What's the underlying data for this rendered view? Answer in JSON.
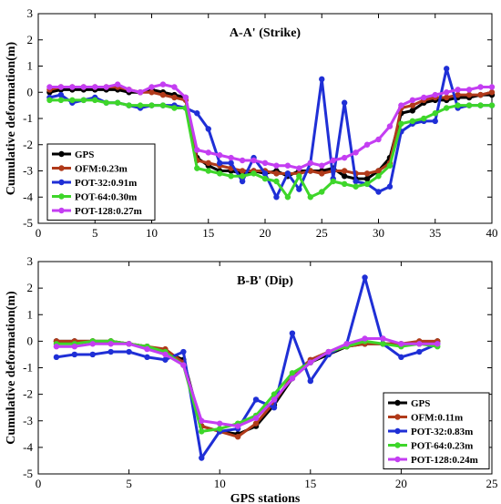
{
  "chart_data": [
    {
      "type": "line",
      "title": "A-A' (Strike)",
      "xlabel": "",
      "ylabel": "Cumulative deformation(m)",
      "xlim": [
        0,
        40
      ],
      "ylim": [
        -5,
        3
      ],
      "xticks": [
        0,
        5,
        10,
        15,
        20,
        25,
        30,
        35,
        40
      ],
      "yticks": [
        -5,
        -4,
        -3,
        -2,
        -1,
        0,
        1,
        2,
        3
      ],
      "grid": false,
      "legend_position": "bottom-left",
      "x": [
        1,
        2,
        3,
        4,
        5,
        6,
        7,
        8,
        9,
        10,
        11,
        12,
        13,
        14,
        15,
        16,
        17,
        18,
        19,
        20,
        21,
        22,
        23,
        24,
        25,
        26,
        27,
        28,
        29,
        30,
        31,
        32,
        33,
        34,
        35,
        36,
        37,
        38,
        39,
        40
      ],
      "series": [
        {
          "name": "GPS",
          "color": "#000000",
          "values": [
            0.0,
            0.1,
            0.1,
            0.1,
            0.1,
            0.1,
            0.1,
            0.0,
            0.0,
            0.1,
            0.0,
            -0.1,
            -0.2,
            -2.5,
            -2.8,
            -3.0,
            -3.0,
            -3.1,
            -3.0,
            -3.1,
            -3.0,
            -3.2,
            -3.0,
            -3.0,
            -3.0,
            -2.9,
            -3.2,
            -3.3,
            -3.3,
            -3.0,
            -2.5,
            -0.8,
            -0.7,
            -0.4,
            -0.3,
            -0.3,
            -0.2,
            -0.2,
            -0.1,
            -0.1
          ]
        },
        {
          "name": "OFM:0.23m",
          "color": "#b03a1a",
          "values": [
            0.1,
            0.2,
            0.2,
            0.2,
            0.2,
            0.2,
            0.2,
            0.1,
            0.0,
            0.0,
            -0.1,
            -0.2,
            -0.3,
            -2.6,
            -2.7,
            -2.8,
            -2.9,
            -3.0,
            -3.0,
            -3.0,
            -3.1,
            -3.1,
            -3.1,
            -3.0,
            -3.1,
            -3.0,
            -3.0,
            -3.1,
            -3.1,
            -3.0,
            -2.7,
            -0.6,
            -0.5,
            -0.3,
            -0.2,
            -0.2,
            -0.1,
            -0.1,
            -0.1,
            0.0
          ]
        },
        {
          "name": "POT-32:0.91m",
          "color": "#1f2fd6",
          "values": [
            -0.2,
            -0.1,
            -0.4,
            -0.3,
            -0.2,
            -0.4,
            -0.4,
            -0.5,
            -0.6,
            -0.5,
            -0.5,
            -0.5,
            -0.6,
            -0.8,
            -1.4,
            -2.7,
            -2.7,
            -3.4,
            -2.5,
            -3.1,
            -4.0,
            -3.1,
            -3.7,
            -2.7,
            0.5,
            -3.3,
            -0.4,
            -3.4,
            -3.5,
            -3.8,
            -3.6,
            -1.5,
            -1.2,
            -1.1,
            -1.1,
            0.9,
            -0.6,
            -0.5,
            -0.5,
            -0.5
          ]
        },
        {
          "name": "POT-64:0.30m",
          "color": "#3ed62a",
          "values": [
            -0.3,
            -0.3,
            -0.3,
            -0.3,
            -0.3,
            -0.4,
            -0.4,
            -0.5,
            -0.5,
            -0.5,
            -0.5,
            -0.6,
            -0.6,
            -2.9,
            -3.0,
            -3.1,
            -3.2,
            -3.2,
            -3.1,
            -3.3,
            -3.4,
            -4.0,
            -3.2,
            -4.0,
            -3.8,
            -3.4,
            -3.5,
            -3.6,
            -3.5,
            -3.2,
            -2.8,
            -1.2,
            -1.1,
            -1.0,
            -0.8,
            -0.6,
            -0.5,
            -0.5,
            -0.5,
            -0.5
          ]
        },
        {
          "name": "POT-128:0.27m",
          "color": "#c43ef2",
          "values": [
            0.2,
            0.2,
            0.2,
            0.2,
            0.2,
            0.2,
            0.3,
            0.1,
            0.0,
            0.2,
            0.3,
            0.2,
            -0.2,
            -2.2,
            -2.3,
            -2.4,
            -2.5,
            -2.6,
            -2.6,
            -2.7,
            -2.8,
            -2.8,
            -2.9,
            -2.7,
            -2.8,
            -2.6,
            -2.5,
            -2.3,
            -2.0,
            -1.8,
            -1.3,
            -0.5,
            -0.3,
            -0.2,
            -0.1,
            0.0,
            0.1,
            0.1,
            0.2,
            0.2
          ]
        }
      ]
    },
    {
      "type": "line",
      "title": "B-B' (Dip)",
      "xlabel": "GPS stations",
      "ylabel": "Cumulative deformation(m)",
      "xlim": [
        0,
        25
      ],
      "ylim": [
        -5,
        3
      ],
      "xticks": [
        0,
        5,
        10,
        15,
        20,
        25
      ],
      "yticks": [
        -5,
        -4,
        -3,
        -2,
        -1,
        0,
        1,
        2,
        3
      ],
      "grid": false,
      "legend_position": "bottom-right",
      "x": [
        1,
        2,
        3,
        4,
        5,
        6,
        7,
        8,
        9,
        10,
        11,
        12,
        13,
        14,
        15,
        16,
        17,
        18,
        19,
        20,
        21,
        22
      ],
      "series": [
        {
          "name": "GPS",
          "color": "#000000",
          "values": [
            0.0,
            0.0,
            0.0,
            0.0,
            -0.1,
            -0.2,
            -0.4,
            -0.7,
            -3.2,
            -3.4,
            -3.5,
            -3.2,
            -2.4,
            -1.4,
            -0.8,
            -0.5,
            -0.2,
            -0.1,
            -0.1,
            -0.1,
            -0.1,
            0.0
          ]
        },
        {
          "name": "OFM:0.11m",
          "color": "#b03a1a",
          "values": [
            0.0,
            0.0,
            0.0,
            0.0,
            -0.1,
            -0.2,
            -0.3,
            -0.8,
            -3.2,
            -3.4,
            -3.6,
            -3.1,
            -2.3,
            -1.3,
            -0.7,
            -0.4,
            -0.2,
            -0.1,
            -0.1,
            -0.1,
            0.0,
            0.0
          ]
        },
        {
          "name": "POT-32:0.83m",
          "color": "#1f2fd6",
          "values": [
            -0.6,
            -0.5,
            -0.5,
            -0.4,
            -0.4,
            -0.6,
            -0.7,
            -0.4,
            -4.4,
            -3.4,
            -3.3,
            -2.2,
            -2.5,
            0.3,
            -1.5,
            -0.5,
            -0.1,
            2.4,
            -0.1,
            -0.6,
            -0.4,
            -0.1
          ]
        },
        {
          "name": "POT-64:0.23m",
          "color": "#3ed62a",
          "values": [
            -0.1,
            -0.1,
            0.0,
            0.0,
            -0.1,
            -0.2,
            -0.4,
            -0.9,
            -3.4,
            -3.3,
            -3.1,
            -2.8,
            -2.0,
            -1.2,
            -0.8,
            -0.4,
            -0.2,
            0.0,
            -0.1,
            -0.2,
            -0.1,
            -0.2
          ]
        },
        {
          "name": "POT-128:0.24m",
          "color": "#c43ef2",
          "values": [
            -0.2,
            -0.2,
            -0.1,
            -0.1,
            -0.1,
            -0.3,
            -0.5,
            -0.9,
            -3.0,
            -3.1,
            -3.2,
            -2.9,
            -2.2,
            -1.4,
            -0.8,
            -0.4,
            -0.1,
            0.1,
            0.1,
            -0.1,
            -0.1,
            -0.1
          ]
        }
      ]
    }
  ]
}
